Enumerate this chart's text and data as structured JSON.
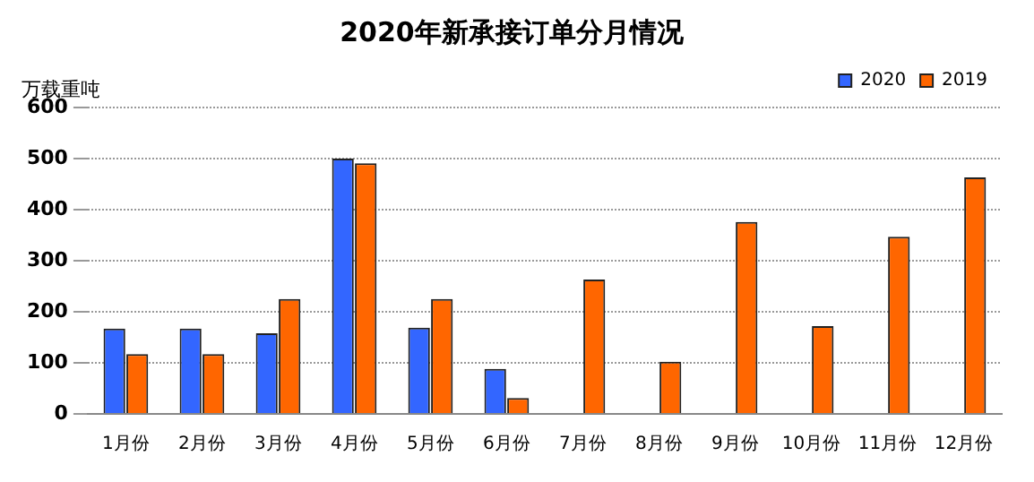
{
  "chart_data": {
    "type": "bar",
    "title": "2020年新承接订单分月情况",
    "ylabel": "万载重吨",
    "categories": [
      "1月份",
      "2月份",
      "3月份",
      "4月份",
      "5月份",
      "6月份",
      "7月份",
      "8月份",
      "9月份",
      "10月份",
      "11月份",
      "12月份"
    ],
    "series": [
      {
        "name": "2020",
        "color": "#3366ff",
        "values": [
          167,
          167,
          158,
          500,
          169,
          88,
          null,
          null,
          null,
          null,
          null,
          null
        ]
      },
      {
        "name": "2019",
        "color": "#ff6600",
        "values": [
          117,
          117,
          225,
          491,
          225,
          31,
          263,
          102,
          376,
          172,
          347,
          463
        ]
      }
    ],
    "ylim": [
      0,
      600
    ],
    "yticks": [
      0,
      100,
      200,
      300,
      400,
      500,
      600
    ],
    "grid": "y",
    "legend": "top right"
  }
}
